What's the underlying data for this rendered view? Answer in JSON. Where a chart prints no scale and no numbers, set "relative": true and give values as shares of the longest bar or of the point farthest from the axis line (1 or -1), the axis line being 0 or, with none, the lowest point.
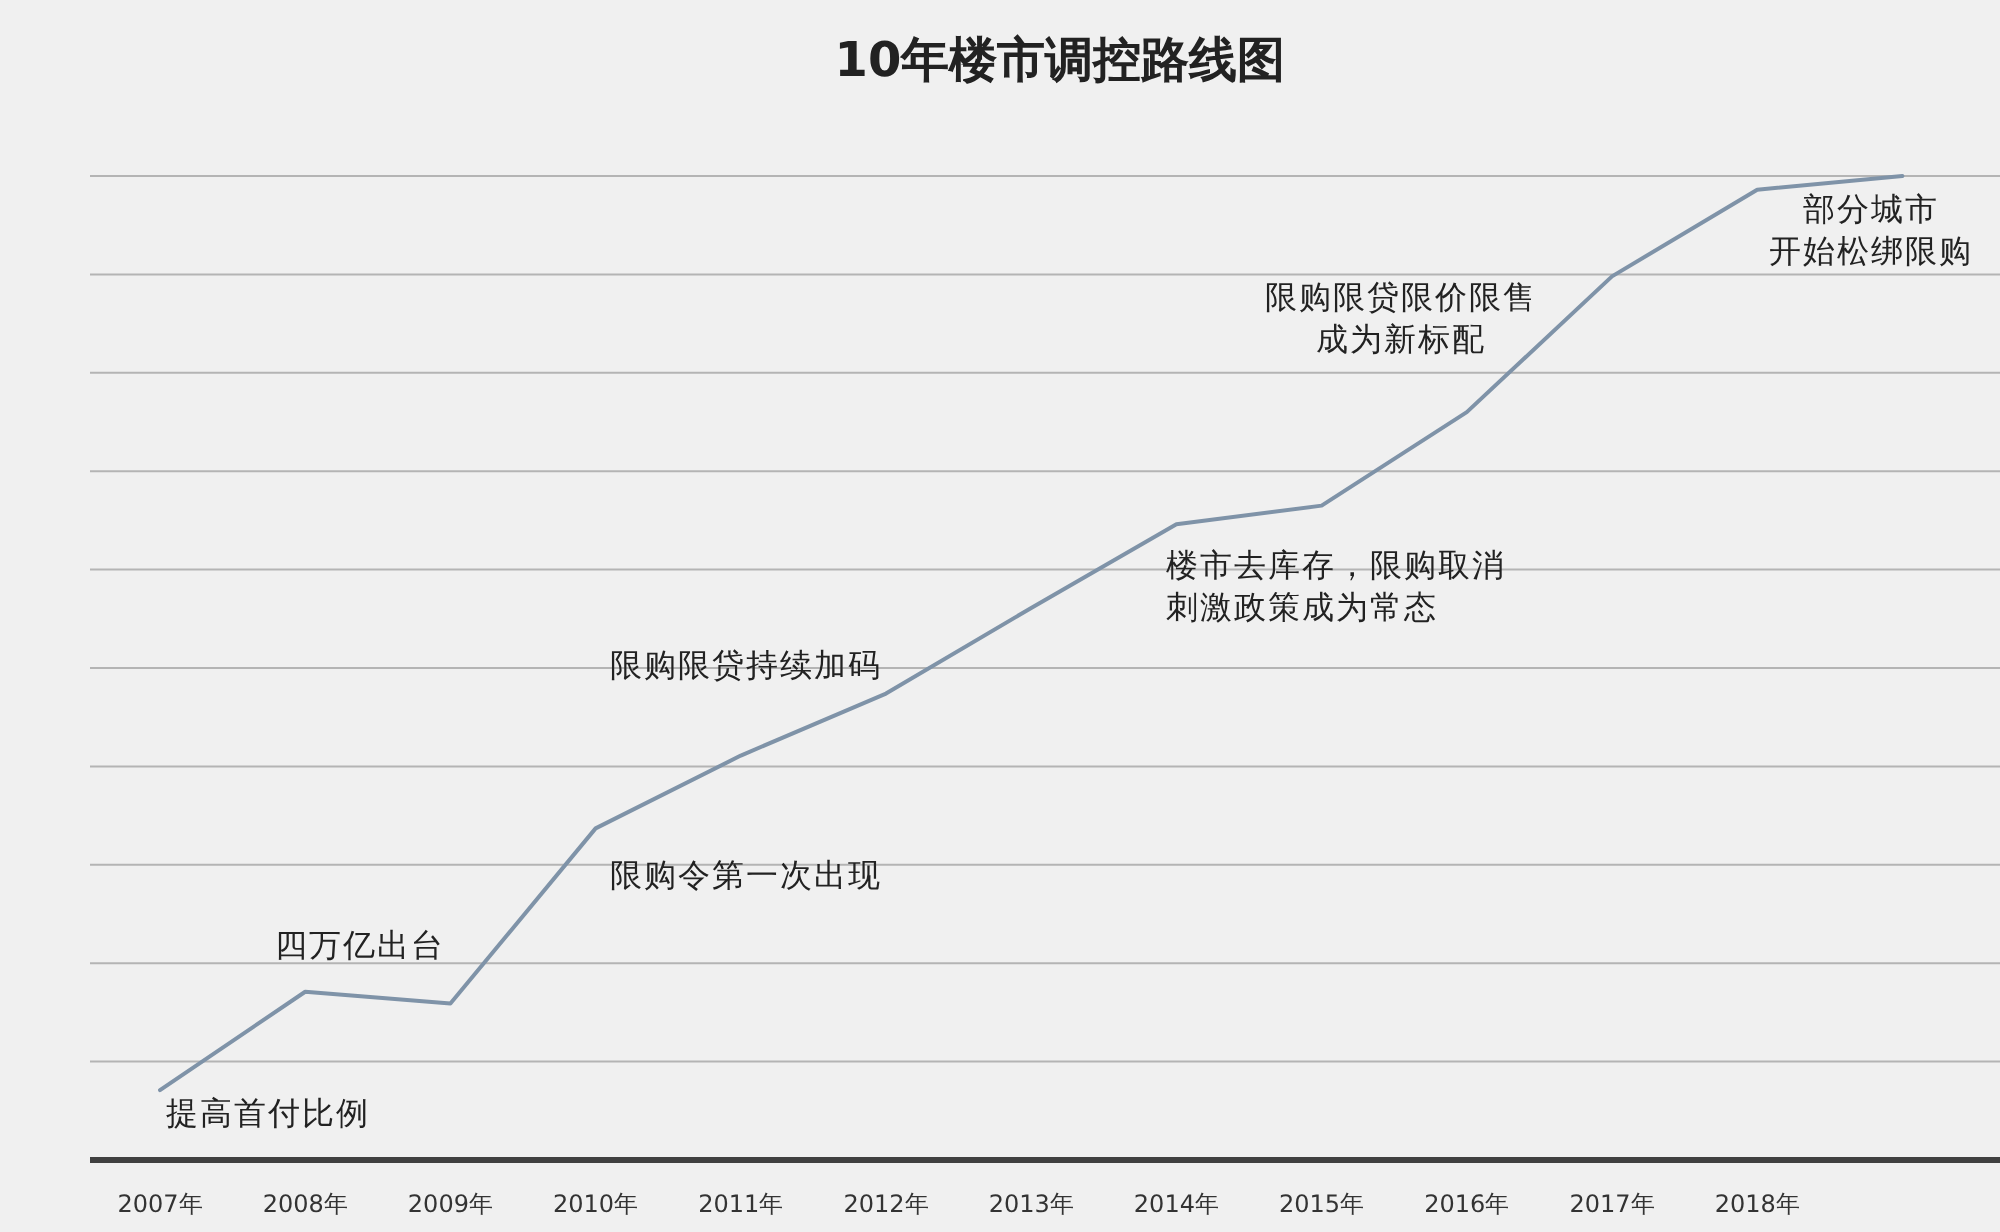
{
  "chart_data": {
    "type": "line",
    "title": "10年楼市调控路线图",
    "relative": true,
    "grid": "y",
    "categories": [
      "2007年",
      "2008年",
      "2009年",
      "2010年",
      "2011年",
      "2012年",
      "2013年",
      "2014年",
      "2015年",
      "2016年",
      "2017年",
      "2018年",
      null
    ],
    "series": [
      {
        "color": "#7f93a8",
        "values": [
          0.071,
          0.171,
          0.159,
          0.337,
          0.411,
          0.474,
          0.561,
          0.646,
          0.665,
          0.76,
          0.898,
          0.986,
          1
        ]
      }
    ],
    "annotations": [
      {
        "text": "提高首付比例",
        "x": "2007年",
        "y": 0.071
      },
      {
        "text": "四万亿出台",
        "x": "2008年",
        "y": 0.171
      },
      {
        "text": "限购令第一次出现",
        "x": "2010年",
        "y": 0.337
      },
      {
        "text": "限购限贷持续加码",
        "x": "2012年",
        "y": 0.474
      },
      {
        "text": "楼市去库存，限购取消刺激政策成为常态",
        "x": "2014年",
        "y": 0.646
      },
      {
        "text": "限购限贷限价限售成为新标配",
        "x": "2016年",
        "y": 0.76
      },
      {
        "text": "部分城市开始松绑限购",
        "x": "2018年",
        "y": 0.986
      }
    ]
  }
}
